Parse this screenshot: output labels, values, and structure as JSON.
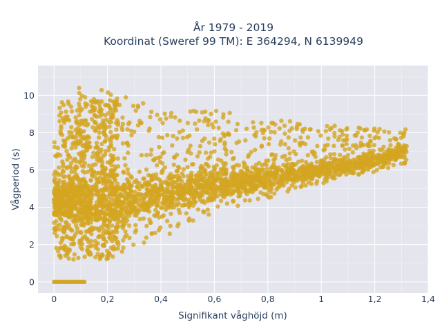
{
  "chart_data": {
    "type": "scatter",
    "title_line1": "År 1979 - 2019",
    "title_line2": "Koordinat (Sweref 99 TM): E 364294, N 6139949",
    "xlabel": "Signifikant våghöjd (m)",
    "ylabel": "Vågperiod (s)",
    "xlim": [
      -0.06,
      1.4
    ],
    "ylim": [
      -0.6,
      11.6
    ],
    "x_ticks": [
      0,
      0.2,
      0.4,
      0.6,
      0.8,
      1,
      1.2,
      1.4
    ],
    "x_tick_labels": [
      "0",
      "0,2",
      "0,4",
      "0,6",
      "0,8",
      "1",
      "1,2",
      "1,4"
    ],
    "y_ticks": [
      0,
      2,
      4,
      6,
      8,
      10
    ],
    "y_tick_labels": [
      "0",
      "2",
      "4",
      "6",
      "8",
      "10"
    ],
    "grid": true,
    "legend": "none",
    "marker_color": "#d4a520",
    "plot_background": "#e5e5ee",
    "envelope": {
      "lower_bound": [
        [
          0.0,
          1.0
        ],
        [
          0.2,
          1.3
        ],
        [
          0.4,
          2.3
        ],
        [
          0.6,
          3.5
        ],
        [
          0.8,
          4.5
        ],
        [
          1.0,
          5.2
        ],
        [
          1.2,
          5.9
        ],
        [
          1.3,
          6.3
        ]
      ],
      "upper_bound": [
        [
          0.0,
          8.5
        ],
        [
          0.1,
          10.6
        ],
        [
          0.2,
          10.5
        ],
        [
          0.4,
          9.2
        ],
        [
          0.6,
          9.2
        ],
        [
          0.8,
          8.8
        ],
        [
          1.0,
          8.4
        ],
        [
          1.2,
          8.3
        ],
        [
          1.3,
          8.2
        ]
      ],
      "dense_core": [
        [
          0.2,
          4.2
        ],
        [
          0.4,
          4.8
        ],
        [
          0.6,
          5.2
        ],
        [
          0.8,
          5.6
        ],
        [
          1.0,
          6.0
        ],
        [
          1.2,
          6.5
        ],
        [
          1.3,
          7.0
        ]
      ],
      "zero_period_points": {
        "x_from": 0.0,
        "x_to": 0.12,
        "y": 0
      }
    }
  }
}
